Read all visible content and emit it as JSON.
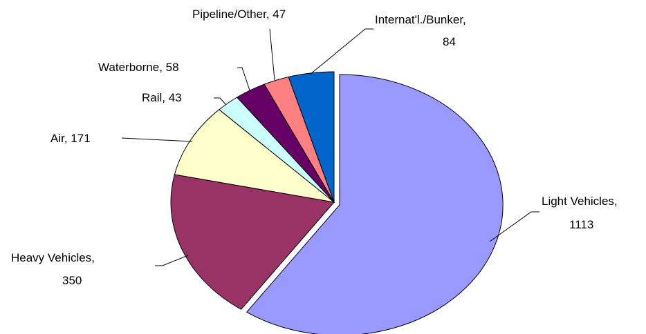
{
  "chart_data": {
    "type": "pie",
    "title": "",
    "legend": "none",
    "slices": [
      {
        "key": "light",
        "name": "Light Vehicles,",
        "value_text": "1113",
        "value": 1113,
        "color": "#9999ff"
      },
      {
        "key": "heavy",
        "name": "Heavy Vehicles,",
        "value_text": "350",
        "value": 350,
        "color": "#993366"
      },
      {
        "key": "air",
        "name": "Air, 171",
        "value": 171,
        "color": "#ffffcc"
      },
      {
        "key": "rail",
        "name": "Rail, 43",
        "value": 43,
        "color": "#ccffff"
      },
      {
        "key": "water",
        "name": "Waterborne, 58",
        "value": 58,
        "color": "#660066"
      },
      {
        "key": "pipe",
        "name": "Pipeline/Other, 47",
        "value": 47,
        "color": "#ff8080"
      },
      {
        "key": "intl",
        "name": "Internat'l./Bunker,",
        "value_text": "84",
        "value": 84,
        "color": "#0066cc"
      }
    ]
  }
}
